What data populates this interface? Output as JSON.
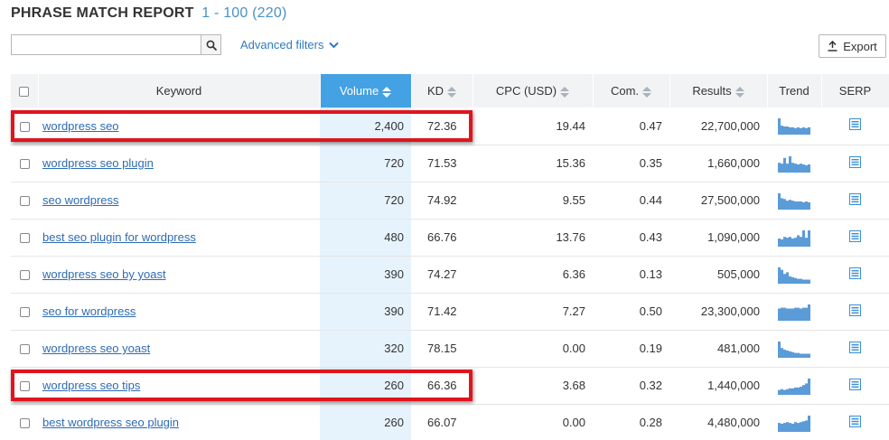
{
  "header": {
    "title": "PHRASE MATCH REPORT",
    "range": "1 - 100 (220)"
  },
  "search": {
    "value": "",
    "placeholder": ""
  },
  "toolbar": {
    "advanced_filters_label": "Advanced filters",
    "export_label": "Export"
  },
  "table": {
    "columns": [
      {
        "label": "Keyword",
        "sortable": false
      },
      {
        "label": "Volume",
        "sortable": true,
        "sorted": true
      },
      {
        "label": "KD",
        "sortable": true
      },
      {
        "label": "CPC (USD)",
        "sortable": true
      },
      {
        "label": "Com.",
        "sortable": true
      },
      {
        "label": "Results",
        "sortable": true
      },
      {
        "label": "Trend",
        "sortable": false
      },
      {
        "label": "SERP",
        "sortable": false
      }
    ],
    "rows": [
      {
        "keyword": "wordpress seo",
        "volume": "2,400",
        "kd": "72.36",
        "cpc": "19.44",
        "com": "0.47",
        "results": "22,700,000",
        "trend": [
          1.0,
          0.55,
          0.5,
          0.5,
          0.45,
          0.45,
          0.4,
          0.45,
          0.4,
          0.45,
          0.4,
          0.45
        ],
        "highlighted": true
      },
      {
        "keyword": "wordpress seo plugin",
        "volume": "720",
        "kd": "71.53",
        "cpc": "15.36",
        "com": "0.35",
        "results": "1,660,000",
        "trend": [
          0.6,
          0.55,
          0.9,
          0.55,
          1.0,
          0.6,
          0.55,
          0.5,
          0.55,
          0.5,
          0.45,
          0.5
        ],
        "highlighted": false
      },
      {
        "keyword": "seo wordpress",
        "volume": "720",
        "kd": "74.92",
        "cpc": "9.55",
        "com": "0.44",
        "results": "27,500,000",
        "trend": [
          1.0,
          0.7,
          0.65,
          0.55,
          0.6,
          0.55,
          0.5,
          0.5,
          0.5,
          0.45,
          0.5,
          0.45
        ],
        "highlighted": false
      },
      {
        "keyword": "best seo plugin for wordpress",
        "volume": "480",
        "kd": "66.76",
        "cpc": "13.76",
        "com": "0.43",
        "results": "1,090,000",
        "trend": [
          0.5,
          0.45,
          0.6,
          0.55,
          0.6,
          0.5,
          0.55,
          0.7,
          0.6,
          1.0,
          0.55,
          1.0
        ],
        "highlighted": false
      },
      {
        "keyword": "wordpress seo by yoast",
        "volume": "390",
        "kd": "74.27",
        "cpc": "6.36",
        "com": "0.13",
        "results": "505,000",
        "trend": [
          1.0,
          0.85,
          0.6,
          0.7,
          0.45,
          0.4,
          0.35,
          0.3,
          0.3,
          0.25,
          0.25,
          0.25
        ],
        "highlighted": false
      },
      {
        "keyword": "seo for wordpress",
        "volume": "390",
        "kd": "71.42",
        "cpc": "7.27",
        "com": "0.50",
        "results": "23,300,000",
        "trend": [
          0.75,
          0.8,
          0.8,
          0.75,
          0.75,
          0.75,
          0.8,
          0.8,
          0.75,
          0.8,
          0.8,
          1.0
        ],
        "highlighted": false
      },
      {
        "keyword": "wordpress seo yoast",
        "volume": "320",
        "kd": "78.15",
        "cpc": "0.00",
        "com": "0.19",
        "results": "481,000",
        "trend": [
          1.0,
          0.6,
          0.5,
          0.45,
          0.4,
          0.35,
          0.3,
          0.3,
          0.25,
          0.25,
          0.25,
          0.25
        ],
        "highlighted": false
      },
      {
        "keyword": "wordpress seo tips",
        "volume": "260",
        "kd": "66.36",
        "cpc": "3.68",
        "com": "0.32",
        "results": "1,440,000",
        "trend": [
          0.3,
          0.35,
          0.3,
          0.35,
          0.4,
          0.4,
          0.45,
          0.45,
          0.5,
          0.6,
          0.7,
          1.0
        ],
        "highlighted": true
      },
      {
        "keyword": "best wordpress seo plugin",
        "volume": "260",
        "kd": "66.07",
        "cpc": "0.00",
        "com": "0.28",
        "results": "4,480,000",
        "trend": [
          0.55,
          0.5,
          0.55,
          0.6,
          0.55,
          0.5,
          0.6,
          0.55,
          0.6,
          0.65,
          0.7,
          1.0
        ],
        "highlighted": false
      }
    ]
  },
  "colors": {
    "accent": "#44a1e4",
    "link": "#2e6bb3",
    "highlight_border": "#e0141e",
    "trend_bar": "#5b9bd8",
    "serp_icon": "#3a8fd4"
  },
  "icons": {
    "search": "magnifier-icon",
    "filters": "chevron-down-icon",
    "export": "upload-arrow-icon",
    "sort": "sort-arrows-icon",
    "serp": "list-document-icon"
  }
}
